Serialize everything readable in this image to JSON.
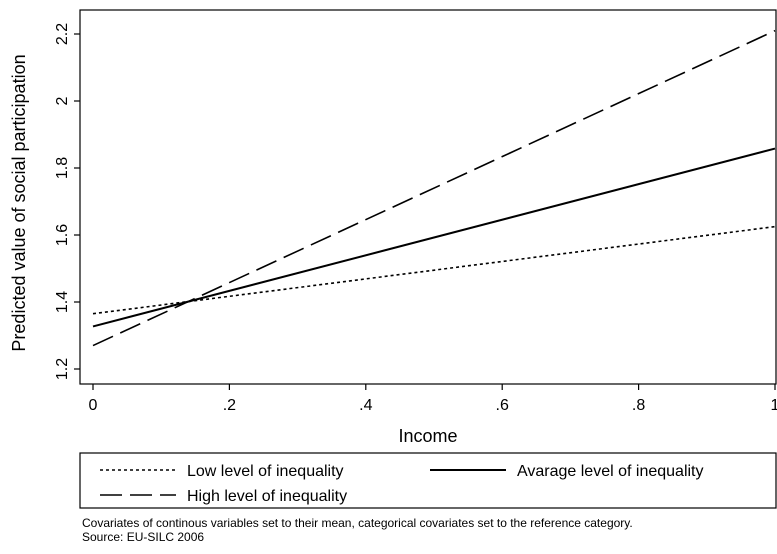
{
  "chart_data": {
    "type": "line",
    "xlabel": "Income",
    "ylabel": "Predicted value of social participation",
    "xlim": [
      0,
      1
    ],
    "ylim": [
      1.2,
      2.2
    ],
    "xticks": [
      "0",
      ".2",
      ".4",
      ".6",
      ".8",
      "1"
    ],
    "yticks": [
      "1.2",
      "1.4",
      "1.6",
      "1.8",
      "2",
      "2.2"
    ],
    "grid": false,
    "legend_position": "bottom",
    "series": [
      {
        "name": "Low level of inequality",
        "style": "dotted",
        "x": [
          0,
          1
        ],
        "y": [
          1.365,
          1.625
        ]
      },
      {
        "name": "Avarage level of inequality",
        "style": "solid",
        "x": [
          0,
          1
        ],
        "y": [
          1.327,
          1.858
        ]
      },
      {
        "name": "High level of inequality",
        "style": "dashed",
        "x": [
          0,
          1
        ],
        "y": [
          1.27,
          2.21
        ]
      }
    ]
  },
  "notes": {
    "line1": "Covariates of continous variables set to their mean, categorical covariates set to the reference category.",
    "line2": "Source: EU-SILC 2006"
  }
}
